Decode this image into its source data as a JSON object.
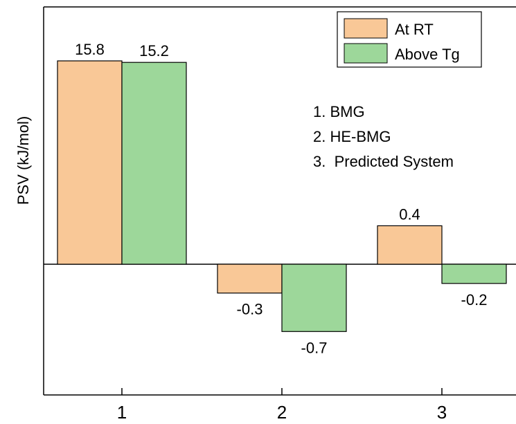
{
  "chart_data": {
    "type": "bar",
    "categories": [
      "1",
      "2",
      "3"
    ],
    "series": [
      {
        "name": "At RT",
        "values": [
          15.8,
          -0.3,
          0.4
        ],
        "labels": [
          "15.8",
          "-0.3",
          "0.4"
        ],
        "color": "#f9c897"
      },
      {
        "name": "Above Tg",
        "values": [
          15.2,
          -0.7,
          -0.2
        ],
        "labels": [
          "15.2",
          "-0.7",
          "-0.2"
        ],
        "color": "#9dd79a"
      }
    ],
    "ylabel": "PSV (kJ/mol)",
    "xlabel": "",
    "annotations": [
      "1. BMG",
      "2. HE-BMG",
      "3.  Predicted System"
    ],
    "legend_position": "top-right",
    "grid": false,
    "y_scale": "symlog"
  }
}
